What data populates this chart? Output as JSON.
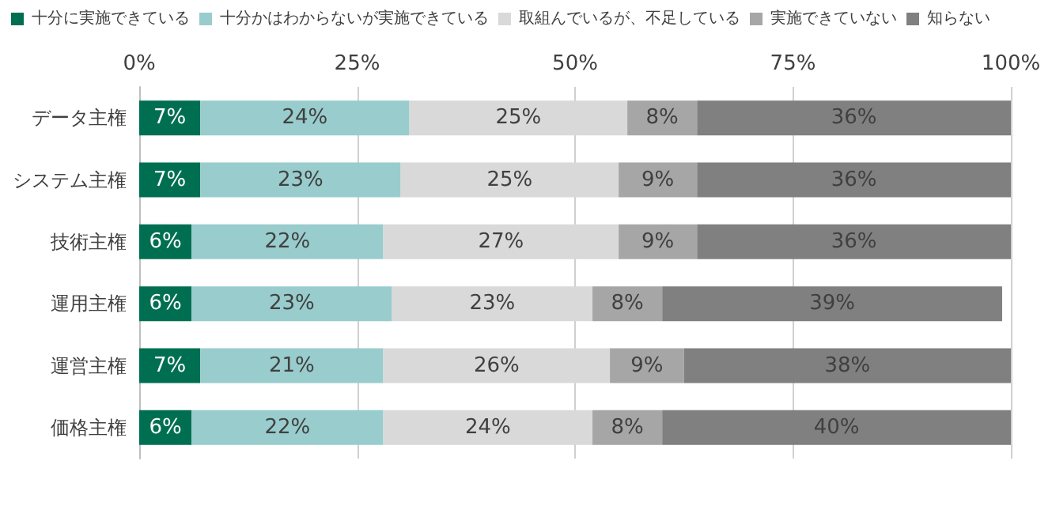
{
  "chart_data": {
    "type": "bar",
    "orientation": "horizontal",
    "stacked": true,
    "categories": [
      "データ主権",
      "システム主権",
      "技術主権",
      "運用主権",
      "運営主権",
      "価格主権"
    ],
    "series": [
      {
        "name": "十分に実施できている",
        "color": "#006f51",
        "values": [
          7,
          7,
          6,
          6,
          7,
          6
        ],
        "value_labels": [
          "7%",
          "7%",
          "6%",
          "6%",
          "7%",
          "6%"
        ]
      },
      {
        "name": "十分かはわからないが実施できている",
        "color": "#99cccc",
        "values": [
          24,
          23,
          22,
          23,
          21,
          22
        ],
        "value_labels": [
          "24%",
          "23%",
          "22%",
          "23%",
          "21%",
          "22%"
        ]
      },
      {
        "name": "取組んでいるが、不足している",
        "color": "#d9d9d9",
        "values": [
          25,
          25,
          27,
          23,
          26,
          24
        ],
        "value_labels": [
          "25%",
          "25%",
          "27%",
          "23%",
          "26%",
          "24%"
        ]
      },
      {
        "name": "実施できていない",
        "color": "#a6a6a6",
        "values": [
          8,
          9,
          9,
          8,
          8.5,
          8
        ],
        "value_labels": [
          "8%",
          "9%",
          "9%",
          "8%",
          "9%",
          "8%"
        ]
      },
      {
        "name": "知らない",
        "color": "#808080",
        "values": [
          36,
          36,
          36,
          39,
          37.5,
          40
        ],
        "value_labels": [
          "36%",
          "36%",
          "36%",
          "39%",
          "38%",
          "40%"
        ]
      }
    ],
    "xlim": [
      0,
      100
    ],
    "xticks": [
      {
        "value": 0,
        "label": "0%"
      },
      {
        "value": 25,
        "label": "25%"
      },
      {
        "value": 50,
        "label": "50%"
      },
      {
        "value": 75,
        "label": "75%"
      },
      {
        "value": 100,
        "label": "100%"
      }
    ],
    "grid": "x",
    "legend": "top left"
  }
}
